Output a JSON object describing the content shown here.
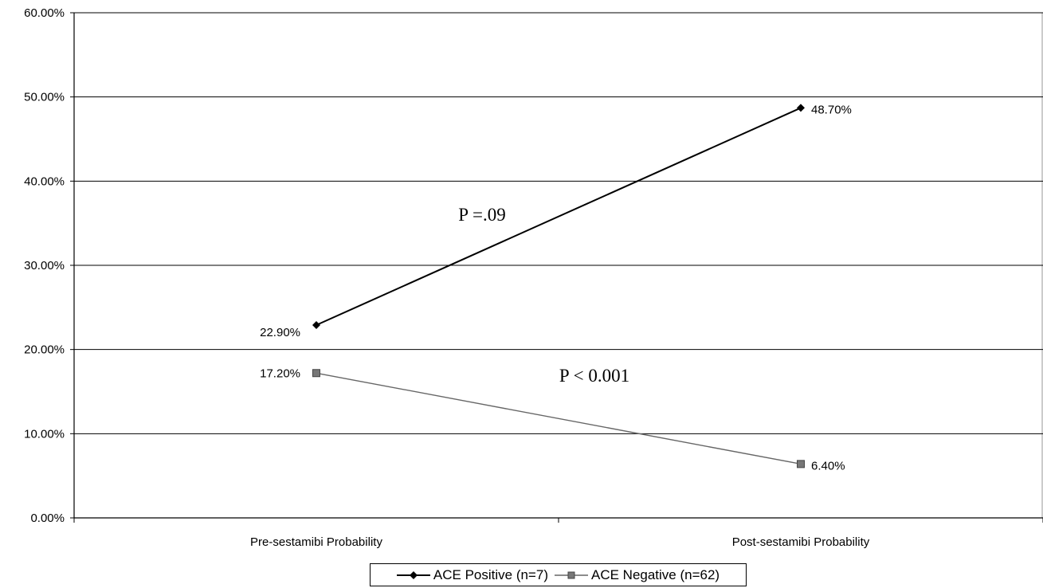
{
  "chart_data": {
    "type": "line",
    "categories": [
      "Pre-sestamibi Probability",
      "Post-sestamibi Probability"
    ],
    "ylim": [
      0,
      60
    ],
    "yticks": [
      "0.00%",
      "10.00%",
      "20.00%",
      "30.00%",
      "40.00%",
      "50.00%",
      "60.00%"
    ],
    "grid": true,
    "legend_position": "bottom",
    "series": [
      {
        "name": "ACE Positive (n=7)",
        "values": [
          22.9,
          48.7
        ],
        "labels": [
          "22.90%",
          "48.70%"
        ],
        "color": "#000000",
        "marker": "diamond"
      },
      {
        "name": "ACE Negative (n=62)",
        "values": [
          17.2,
          6.4
        ],
        "labels": [
          "17.20%",
          "6.40%"
        ],
        "color": "#555555",
        "marker": "square"
      }
    ],
    "annotations": [
      "P =.09",
      "P < 0.001"
    ]
  }
}
